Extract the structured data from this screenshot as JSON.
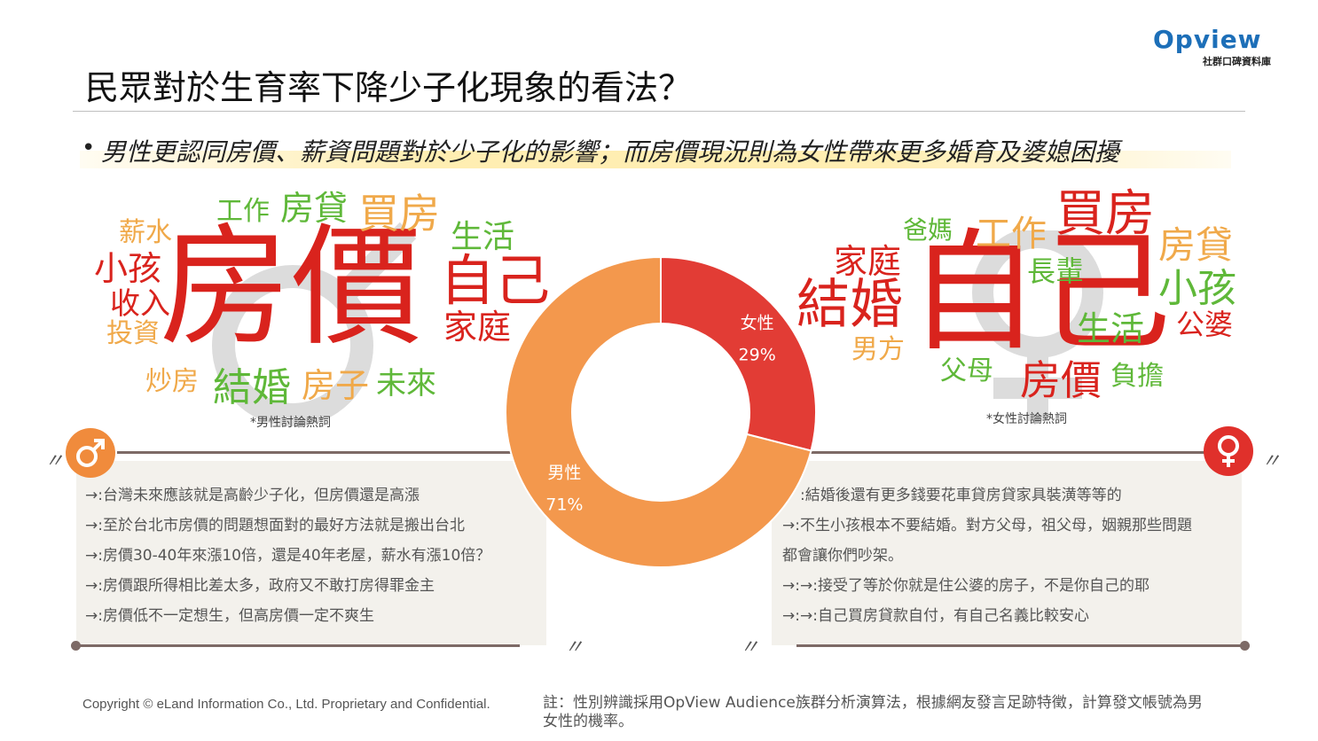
{
  "logo": {
    "name": "Opview",
    "subtitle": "社群口碑資料庫"
  },
  "title": "民眾對於生育率下降少子化現象的看法？",
  "subtitle": "男性更認同房價、薪資問題對於少子化的影響；而房價現況則為女性帶來更多婚育及婆媳困擾",
  "male_cloud": {
    "caption": "*男性討論熱詞",
    "words": [
      {
        "text": "房價",
        "color": "#d9231d"
      },
      {
        "text": "工作",
        "color": "#5fb839"
      },
      {
        "text": "房貸",
        "color": "#5fb839"
      },
      {
        "text": "買房",
        "color": "#f0a94a"
      },
      {
        "text": "薪水",
        "color": "#f0a94a"
      },
      {
        "text": "小孩",
        "color": "#d9231d"
      },
      {
        "text": "收入",
        "color": "#d9231d"
      },
      {
        "text": "投資",
        "color": "#f0a94a"
      },
      {
        "text": "生活",
        "color": "#5fb839"
      },
      {
        "text": "自己",
        "color": "#d9231d"
      },
      {
        "text": "家庭",
        "color": "#d9231d"
      },
      {
        "text": "炒房",
        "color": "#f0a94a"
      },
      {
        "text": "結婚",
        "color": "#5fb839"
      },
      {
        "text": "房子",
        "color": "#f0a94a"
      },
      {
        "text": "未來",
        "color": "#5fb839"
      }
    ]
  },
  "female_cloud": {
    "caption": "*女性討論熱詞",
    "words": [
      {
        "text": "自己",
        "color": "#d9231d"
      },
      {
        "text": "爸媽",
        "color": "#5fb839"
      },
      {
        "text": "工作",
        "color": "#f0a94a"
      },
      {
        "text": "買房",
        "color": "#d9231d"
      },
      {
        "text": "家庭",
        "color": "#d9231d"
      },
      {
        "text": "房貸",
        "color": "#f0a94a"
      },
      {
        "text": "長輩",
        "color": "#5fb839"
      },
      {
        "text": "結婚",
        "color": "#d9231d"
      },
      {
        "text": "小孩",
        "color": "#5fb839"
      },
      {
        "text": "生活",
        "color": "#5fb839"
      },
      {
        "text": "公婆",
        "color": "#d9231d"
      },
      {
        "text": "男方",
        "color": "#f0a94a"
      },
      {
        "text": "父母",
        "color": "#5fb839"
      },
      {
        "text": "房價",
        "color": "#d9231d"
      },
      {
        "text": "負擔",
        "color": "#5fb839"
      }
    ]
  },
  "chart_data": {
    "type": "pie",
    "donut": true,
    "categories": [
      "女性",
      "男性"
    ],
    "values": [
      29,
      71
    ],
    "labels": [
      "29%",
      "71%"
    ],
    "colors": [
      "#e23c35",
      "#f3984d"
    ]
  },
  "male_quotes": [
    "→:台灣未來應該就是高齡少子化，但房價還是高漲",
    "→:至於台北市房價的問題想面對的最好方法就是搬出台北",
    "→:房價30-40年來漲10倍，還是40年老屋，薪水有漲10倍？",
    "→:房價跟所得相比差太多，政府又不敢打房得罪金主",
    "→:房價低不一定想生，但高房價一定不爽生"
  ],
  "female_quotes": [
    ":結婚後還有更多錢要花車貸房貸家具裝潢等等的",
    "→:不生小孩根本不要結婚。對方父母，祖父母，姻親那些問題",
    "都會讓你們吵架。",
    "→:→:接受了等於你就是住公婆的房子，不是你自己的耶",
    "→:→:自己買房貸款自付，有自己名義比較安心"
  ],
  "quote_mark": "〃",
  "male_symbol_color": "#f08b3c",
  "female_symbol_color": "#e0302b",
  "footer": {
    "copyright": "Copyright © eLand Information Co., Ltd. Proprietary and Confidential.",
    "note": "註：性別辨識採用OpView Audience族群分析演算法，根據網友發言足跡特徵，計算發文帳號為男女性的機率。"
  }
}
